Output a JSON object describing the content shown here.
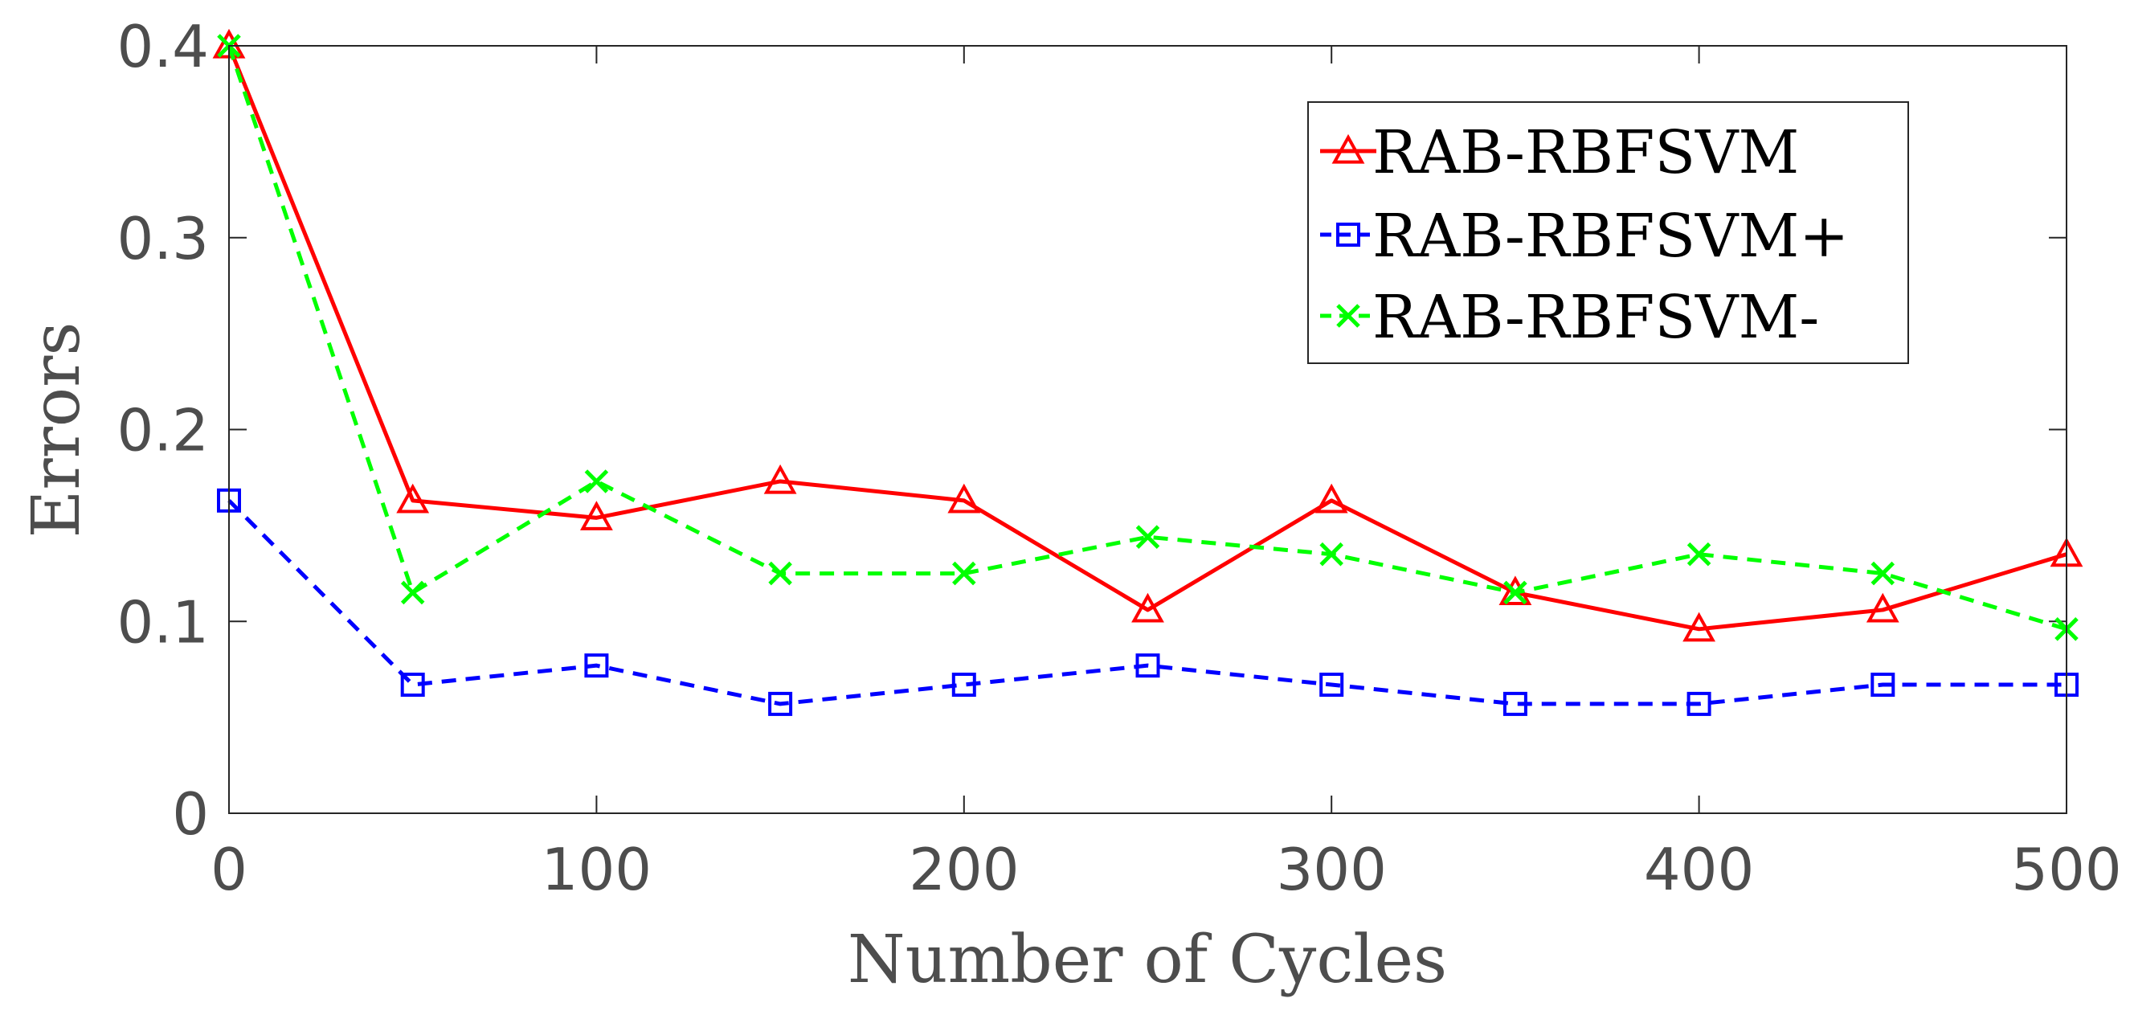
{
  "chart_data": {
    "type": "line",
    "title": "",
    "xlabel": "Number of Cycles",
    "ylabel": "Errors",
    "xlim": [
      0,
      500
    ],
    "ylim": [
      0,
      0.4
    ],
    "xticks": [
      0,
      100,
      200,
      300,
      400,
      500
    ],
    "xtick_labels": [
      "0",
      "100",
      "200",
      "300",
      "400",
      "500"
    ],
    "yticks": [
      0,
      0.1,
      0.2,
      0.3,
      0.4
    ],
    "ytick_labels": [
      "0",
      "0.1",
      "0.2",
      "0.3",
      "0.4"
    ],
    "grid": false,
    "legend_position": "top-right",
    "x": [
      0,
      50,
      100,
      150,
      200,
      250,
      300,
      350,
      400,
      450,
      500
    ],
    "series": [
      {
        "name": "RAB-RBFSVM",
        "color": "#ff0000",
        "line_style": "solid",
        "marker": "triangle",
        "values": [
          0.4,
          0.163,
          0.154,
          0.173,
          0.163,
          0.106,
          0.163,
          0.115,
          0.096,
          0.106,
          0.135
        ]
      },
      {
        "name": "RAB-RBFSVM+",
        "color": "#0000ff",
        "line_style": "dashed",
        "marker": "square",
        "values": [
          0.163,
          0.067,
          0.077,
          0.057,
          0.067,
          0.077,
          0.067,
          0.057,
          0.057,
          0.067,
          0.067
        ]
      },
      {
        "name": "RAB-RBFSVM-",
        "color": "#00ff00",
        "line_style": "dashed",
        "marker": "x",
        "values": [
          0.4,
          0.115,
          0.173,
          0.125,
          0.125,
          0.144,
          0.135,
          0.115,
          0.135,
          0.125,
          0.096
        ]
      }
    ]
  }
}
